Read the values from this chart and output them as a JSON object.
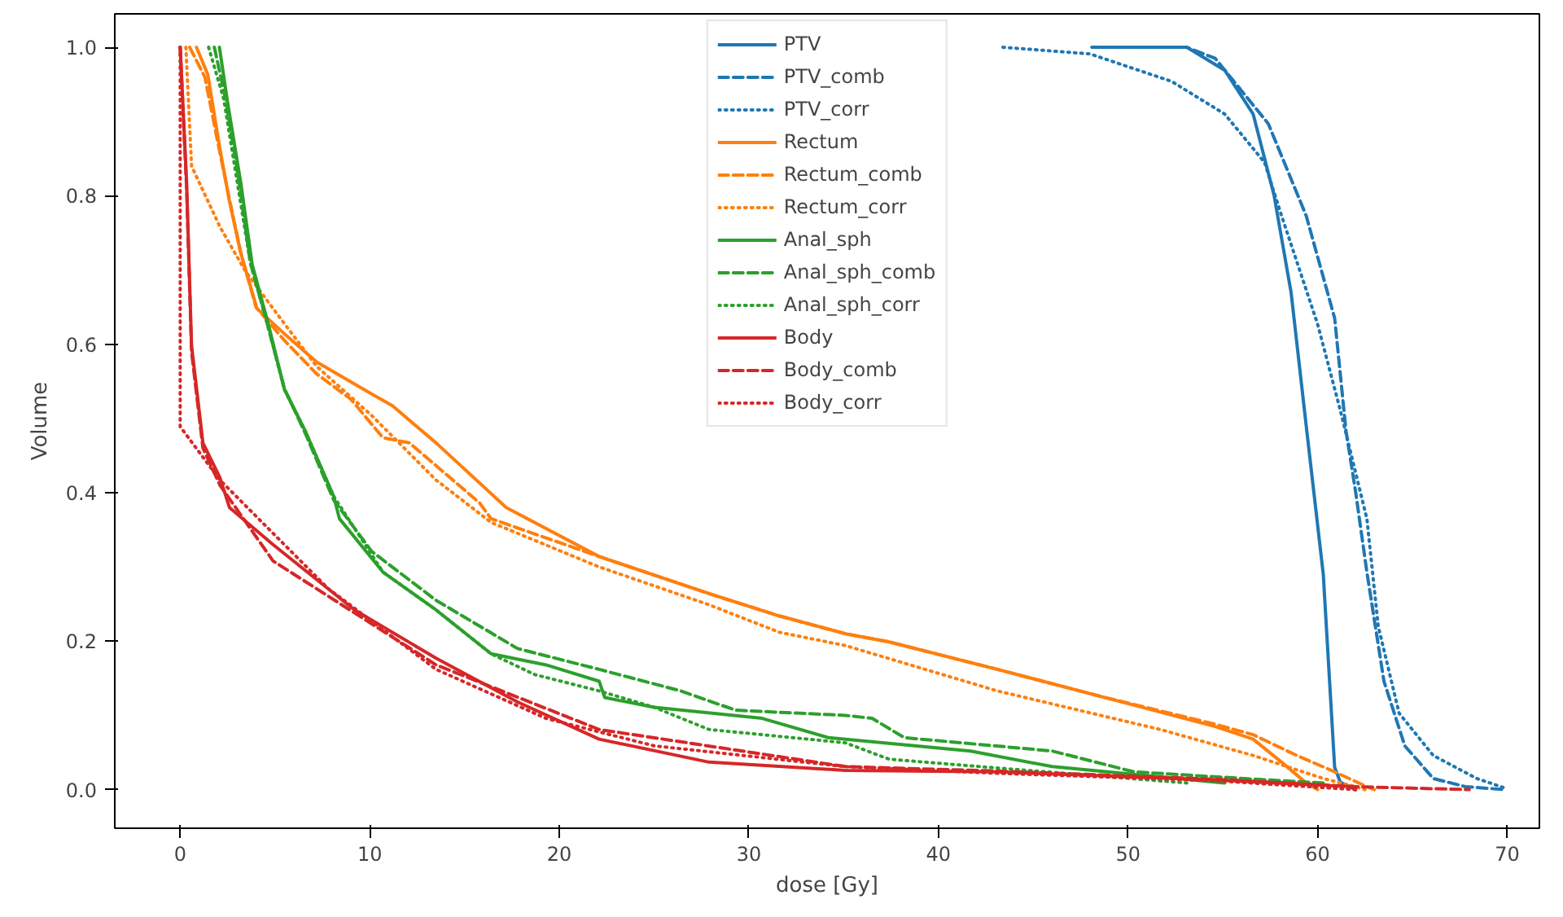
{
  "chart_data": {
    "type": "line",
    "xlabel": "dose [Gy]",
    "ylabel": "Volume",
    "xlim": [
      -3.45,
      71.7
    ],
    "ylim": [
      -0.052,
      1.045
    ],
    "xticks": [
      0,
      10,
      20,
      30,
      40,
      50,
      60,
      70
    ],
    "yticks": [
      {
        "value": 0,
        "label": "0.0"
      },
      {
        "value": 0.2,
        "label": "0.2"
      },
      {
        "value": 0.4,
        "label": "0.4"
      },
      {
        "value": 0.6,
        "label": "0.6"
      },
      {
        "value": 0.8,
        "label": "0.8"
      },
      {
        "value": 1,
        "label": "1.0"
      }
    ],
    "legend": "top",
    "grid": false,
    "series": [
      {
        "name": "PTV",
        "color": "#1f77b4",
        "line_style": "solid",
        "x": [
          48.1,
          53.1,
          55.1,
          56.6,
          57.7,
          58.6,
          59.4,
          60.3,
          60.9,
          61.2,
          62.0
        ],
        "values": [
          1.0,
          1.0,
          0.969,
          0.91,
          0.801,
          0.67,
          0.49,
          0.29,
          0.03,
          0.01,
          0.0
        ]
      },
      {
        "name": "PTV_comb",
        "color": "#1f77b4",
        "line_style": "dashed",
        "x": [
          48.1,
          53.1,
          54.6,
          57.4,
          59.4,
          60.9,
          61.5,
          62.0,
          62.6,
          63.5,
          64.6,
          66.1,
          67.8,
          69.9
        ],
        "values": [
          1.0,
          1.0,
          0.985,
          0.897,
          0.773,
          0.635,
          0.483,
          0.402,
          0.293,
          0.146,
          0.059,
          0.015,
          0.004,
          0.0
        ]
      },
      {
        "name": "PTV_corr",
        "color": "#1f77b4",
        "line_style": "dotted",
        "x": [
          43.4,
          48.0,
          52.3,
          55.1,
          57.2,
          58.1,
          60.0,
          61.2,
          62.6,
          63.2,
          64.3,
          66.1,
          68.4,
          69.9
        ],
        "values": [
          1.0,
          0.991,
          0.954,
          0.91,
          0.845,
          0.773,
          0.627,
          0.511,
          0.365,
          0.22,
          0.103,
          0.046,
          0.015,
          0.002
        ]
      },
      {
        "name": "Rectum",
        "color": "#ff7f0e",
        "line_style": "solid",
        "x": [
          0.86,
          1.46,
          2.07,
          2.58,
          3.19,
          4.05,
          5.5,
          7.2,
          10.1,
          11.2,
          13.5,
          17.2,
          22.1,
          27.9,
          31.6,
          35.1,
          37.4,
          43.1,
          48.8,
          54.6,
          56.6,
          58.1,
          59.4,
          60.0
        ],
        "values": [
          1.0,
          0.963,
          0.867,
          0.795,
          0.723,
          0.648,
          0.614,
          0.576,
          0.533,
          0.517,
          0.467,
          0.38,
          0.314,
          0.264,
          0.234,
          0.21,
          0.199,
          0.162,
          0.124,
          0.085,
          0.068,
          0.037,
          0.009,
          0.0
        ]
      },
      {
        "name": "Rectum_comb",
        "color": "#ff7f0e",
        "line_style": "dashed",
        "x": [
          0.5,
          1.3,
          2.0,
          2.6,
          3.2,
          4.0,
          5.5,
          7.2,
          9.0,
          10.7,
          12.1,
          15.8,
          16.4,
          22.1,
          27.9,
          31.6,
          35.1,
          37.4,
          43.1,
          48.8,
          54.6,
          56.6,
          58.9,
          60.9,
          62.6,
          63.0
        ],
        "values": [
          1.0,
          0.96,
          0.87,
          0.795,
          0.723,
          0.65,
          0.605,
          0.56,
          0.526,
          0.474,
          0.467,
          0.386,
          0.365,
          0.314,
          0.264,
          0.234,
          0.21,
          0.199,
          0.162,
          0.124,
          0.088,
          0.074,
          0.046,
          0.024,
          0.004,
          0.0
        ]
      },
      {
        "name": "Rectum_corr",
        "color": "#ff7f0e",
        "line_style": "dotted",
        "x": [
          0.3,
          0.6,
          2.1,
          3.4,
          4.9,
          7.2,
          10.1,
          13.5,
          16.4,
          22.1,
          27.9,
          31.6,
          35.1,
          43.1,
          51.7,
          56.6,
          60.3,
          62.0,
          62.5
        ],
        "values": [
          1.0,
          0.84,
          0.758,
          0.7,
          0.648,
          0.57,
          0.504,
          0.417,
          0.36,
          0.3,
          0.249,
          0.212,
          0.194,
          0.133,
          0.081,
          0.046,
          0.015,
          0.004,
          0.0
        ]
      },
      {
        "name": "Anal_sph",
        "color": "#2ca02c",
        "line_style": "solid",
        "x": [
          2.07,
          2.5,
          3.2,
          3.8,
          4.65,
          5.5,
          6.6,
          8.1,
          8.4,
          10.7,
          13.5,
          16.4,
          19.3,
          22.1,
          22.4,
          25.0,
          30.7,
          34.2,
          41.7,
          46.0,
          55.1
        ],
        "values": [
          1.0,
          0.926,
          0.817,
          0.707,
          0.627,
          0.539,
          0.483,
          0.395,
          0.365,
          0.293,
          0.242,
          0.183,
          0.168,
          0.146,
          0.124,
          0.111,
          0.096,
          0.07,
          0.052,
          0.031,
          0.009
        ]
      },
      {
        "name": "Anal_sph_comb",
        "color": "#2ca02c",
        "line_style": "dashed",
        "x": [
          1.8,
          2.4,
          3.1,
          3.7,
          4.6,
          5.5,
          6.6,
          8.1,
          10.1,
          13.5,
          17.8,
          22.1,
          26.4,
          29.3,
          35.1,
          36.5,
          38.2,
          46.0,
          50.3,
          57.4,
          60.3
        ],
        "values": [
          1.0,
          0.93,
          0.82,
          0.71,
          0.627,
          0.54,
          0.48,
          0.39,
          0.321,
          0.255,
          0.19,
          0.162,
          0.133,
          0.107,
          0.1,
          0.096,
          0.07,
          0.052,
          0.024,
          0.013,
          0.009
        ]
      },
      {
        "name": "Anal_sph_corr",
        "color": "#2ca02c",
        "line_style": "dotted",
        "x": [
          1.5,
          2.3,
          3.0,
          3.7,
          4.6,
          5.5,
          6.6,
          8.1,
          10.7,
          13.5,
          16.4,
          18.7,
          22.1,
          25.0,
          27.9,
          35.1,
          37.4,
          42.2,
          53.1
        ],
        "values": [
          1.0,
          0.93,
          0.82,
          0.71,
          0.627,
          0.539,
          0.483,
          0.395,
          0.293,
          0.242,
          0.183,
          0.155,
          0.133,
          0.111,
          0.081,
          0.063,
          0.041,
          0.031,
          0.009
        ]
      },
      {
        "name": "Body",
        "color": "#d62728",
        "line_style": "solid",
        "x": [
          0.0,
          0.34,
          0.6,
          1.2,
          2.1,
          2.6,
          4.9,
          9.2,
          13.5,
          17.8,
          22.1,
          27.9,
          35.1,
          43.1,
          54.6,
          61.8,
          62.0
        ],
        "values": [
          1.0,
          0.817,
          0.598,
          0.467,
          0.42,
          0.38,
          0.33,
          0.242,
          0.177,
          0.118,
          0.068,
          0.037,
          0.026,
          0.024,
          0.013,
          0.004,
          0.0
        ]
      },
      {
        "name": "Body_comb",
        "color": "#d62728",
        "line_style": "dashed",
        "x": [
          0.0,
          0.34,
          0.6,
          1.2,
          2.1,
          4.9,
          13.5,
          22.1,
          35.1,
          43.1,
          54.6,
          62.0,
          68.0
        ],
        "values": [
          1.0,
          0.81,
          0.59,
          0.46,
          0.41,
          0.308,
          0.168,
          0.081,
          0.031,
          0.025,
          0.014,
          0.004,
          0.0
        ]
      },
      {
        "name": "Body_corr",
        "color": "#d62728",
        "line_style": "dotted",
        "x": [
          0.0,
          0.0,
          2.1,
          7.8,
          13.5,
          19.3,
          25.0,
          35.1,
          43.1,
          54.6,
          62.0
        ],
        "values": [
          1.0,
          0.489,
          0.417,
          0.271,
          0.162,
          0.096,
          0.059,
          0.031,
          0.022,
          0.012,
          0.0
        ]
      }
    ]
  }
}
